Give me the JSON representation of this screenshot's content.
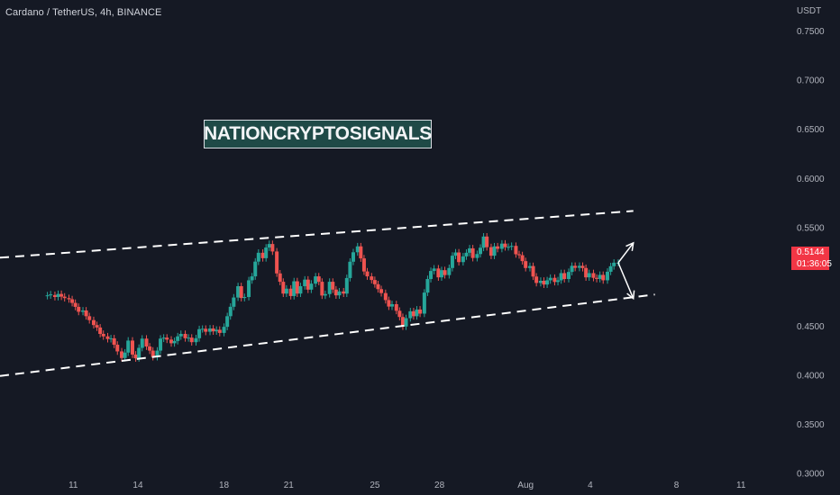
{
  "header": {
    "title": "Cardano / TetherUS, 4h, BINANCE"
  },
  "watermark": {
    "text": "NATIONCRYPTOSIGNALS"
  },
  "price_badge": {
    "price": "0.5144",
    "countdown": "01:36:05",
    "color": "#f23645"
  },
  "colors": {
    "background": "#151924",
    "up": "#26a69a",
    "down": "#ef5350",
    "grid": "#1e2230",
    "axis_text": "#b2b5be",
    "line": "#ffffff"
  },
  "chart_data": {
    "type": "candlestick",
    "symbol": "Cardano / TetherUS",
    "interval": "4h",
    "exchange": "BINANCE",
    "y_unit": "USDT",
    "ylim": [
      0.2782,
      0.7815
    ],
    "y_ticks": [
      "0.7500",
      "0.7000",
      "0.6500",
      "0.6000",
      "0.5500",
      "0.4500",
      "0.4000",
      "0.3500",
      "0.3000"
    ],
    "x_ticks": [
      "11",
      "14",
      "18",
      "21",
      "25",
      "28",
      "Aug",
      "4",
      "8",
      "11"
    ],
    "x_tick_days": [
      11,
      14,
      18,
      21,
      25,
      28,
      32,
      35,
      39,
      42
    ],
    "x_range_days": [
      7.6,
      44
    ],
    "last_price": 0.5144,
    "candles": [
      [
        9.8,
        0.4806,
        0.4812
      ],
      [
        9.95,
        0.4812,
        0.4822
      ],
      [
        10.15,
        0.4815,
        0.4795
      ],
      [
        10.3,
        0.4795,
        0.4826
      ],
      [
        10.45,
        0.4826,
        0.4799
      ],
      [
        10.6,
        0.4799,
        0.4784
      ],
      [
        10.8,
        0.4784,
        0.4772
      ],
      [
        10.95,
        0.4772,
        0.4735
      ],
      [
        11.1,
        0.4735,
        0.4695
      ],
      [
        11.25,
        0.4695,
        0.4645
      ],
      [
        11.45,
        0.4645,
        0.4658
      ],
      [
        11.6,
        0.4658,
        0.46
      ],
      [
        11.75,
        0.46,
        0.456
      ],
      [
        11.95,
        0.456,
        0.451
      ],
      [
        12.1,
        0.451,
        0.4485
      ],
      [
        12.25,
        0.4485,
        0.442
      ],
      [
        12.4,
        0.442,
        0.4395
      ],
      [
        12.6,
        0.4395,
        0.4368
      ],
      [
        12.75,
        0.4368,
        0.4375
      ],
      [
        12.9,
        0.4375,
        0.431
      ],
      [
        13.05,
        0.431,
        0.4242
      ],
      [
        13.25,
        0.4242,
        0.4175
      ],
      [
        13.4,
        0.4175,
        0.423
      ],
      [
        13.55,
        0.423,
        0.4352
      ],
      [
        13.75,
        0.4352,
        0.421
      ],
      [
        13.9,
        0.421,
        0.4172
      ],
      [
        14.05,
        0.4172,
        0.4278
      ],
      [
        14.2,
        0.4278,
        0.4372
      ],
      [
        14.4,
        0.4372,
        0.4292
      ],
      [
        14.55,
        0.4292,
        0.425
      ],
      [
        14.7,
        0.425,
        0.4185
      ],
      [
        14.9,
        0.4185,
        0.425
      ],
      [
        15.05,
        0.425,
        0.4372
      ],
      [
        15.2,
        0.4372,
        0.4382
      ],
      [
        15.35,
        0.4382,
        0.4362
      ],
      [
        15.55,
        0.4362,
        0.4325
      ],
      [
        15.7,
        0.4325,
        0.4348
      ],
      [
        15.85,
        0.4348,
        0.4395
      ],
      [
        16.0,
        0.4395,
        0.442
      ],
      [
        16.2,
        0.442,
        0.4376
      ],
      [
        16.35,
        0.4376,
        0.4382
      ],
      [
        16.5,
        0.4382,
        0.4336
      ],
      [
        16.7,
        0.4336,
        0.4376
      ],
      [
        16.85,
        0.4376,
        0.4468
      ],
      [
        17.0,
        0.4468,
        0.4472
      ],
      [
        17.15,
        0.4472,
        0.4442
      ],
      [
        17.35,
        0.4442,
        0.4475
      ],
      [
        17.5,
        0.4475,
        0.4446
      ],
      [
        17.65,
        0.4446,
        0.4462
      ],
      [
        17.8,
        0.4462,
        0.443
      ],
      [
        18.0,
        0.443,
        0.4492
      ],
      [
        18.15,
        0.4492,
        0.46
      ],
      [
        18.3,
        0.46,
        0.4696
      ],
      [
        18.45,
        0.4696,
        0.479
      ],
      [
        18.65,
        0.479,
        0.4905
      ],
      [
        18.8,
        0.4905,
        0.4785
      ],
      [
        18.95,
        0.4785,
        0.4795
      ],
      [
        19.15,
        0.4795,
        0.4965
      ],
      [
        19.3,
        0.4965,
        0.5005
      ],
      [
        19.45,
        0.5005,
        0.5155
      ],
      [
        19.6,
        0.5155,
        0.5245
      ],
      [
        19.8,
        0.5245,
        0.519
      ],
      [
        19.95,
        0.519,
        0.5298
      ],
      [
        20.1,
        0.5298,
        0.5334
      ],
      [
        20.25,
        0.5334,
        0.5258
      ],
      [
        20.45,
        0.5258,
        0.5035
      ],
      [
        20.6,
        0.5035,
        0.495
      ],
      [
        20.75,
        0.495,
        0.483
      ],
      [
        20.9,
        0.483,
        0.488
      ],
      [
        21.1,
        0.488,
        0.4805
      ],
      [
        21.25,
        0.4805,
        0.4955
      ],
      [
        21.4,
        0.4955,
        0.483
      ],
      [
        21.55,
        0.483,
        0.4905
      ],
      [
        21.75,
        0.4905,
        0.4972
      ],
      [
        21.9,
        0.4972,
        0.487
      ],
      [
        22.05,
        0.487,
        0.4931
      ],
      [
        22.25,
        0.4931,
        0.5005
      ],
      [
        22.4,
        0.5005,
        0.495
      ],
      [
        22.55,
        0.495,
        0.481
      ],
      [
        22.7,
        0.481,
        0.4825
      ],
      [
        22.9,
        0.4825,
        0.495
      ],
      [
        23.05,
        0.495,
        0.4871
      ],
      [
        23.2,
        0.4871,
        0.4812
      ],
      [
        23.35,
        0.4812,
        0.4852
      ],
      [
        23.55,
        0.4852,
        0.483
      ],
      [
        23.7,
        0.483,
        0.4988
      ],
      [
        23.85,
        0.4988,
        0.5154
      ],
      [
        24.0,
        0.5154,
        0.525
      ],
      [
        24.2,
        0.525,
        0.531
      ],
      [
        24.35,
        0.531,
        0.5188
      ],
      [
        24.5,
        0.5188,
        0.5055
      ],
      [
        24.65,
        0.5055,
        0.5005
      ],
      [
        24.85,
        0.5005,
        0.4968
      ],
      [
        25.0,
        0.4968,
        0.4925
      ],
      [
        25.15,
        0.4925,
        0.4875
      ],
      [
        25.3,
        0.4875,
        0.4835
      ],
      [
        25.5,
        0.4835,
        0.4764
      ],
      [
        25.65,
        0.4764,
        0.4698
      ],
      [
        25.8,
        0.4698,
        0.4722
      ],
      [
        26.0,
        0.4722,
        0.4655
      ],
      [
        26.15,
        0.4655,
        0.4592
      ],
      [
        26.3,
        0.4592,
        0.4495
      ],
      [
        26.45,
        0.4495,
        0.458
      ],
      [
        26.65,
        0.458,
        0.465
      ],
      [
        26.8,
        0.465,
        0.46
      ],
      [
        26.95,
        0.46,
        0.4668
      ],
      [
        27.1,
        0.4668,
        0.4626
      ],
      [
        27.3,
        0.4626,
        0.484
      ],
      [
        27.45,
        0.484,
        0.4978
      ],
      [
        27.6,
        0.4978,
        0.506
      ],
      [
        27.75,
        0.506,
        0.5085
      ],
      [
        27.95,
        0.5085,
        0.4995
      ],
      [
        28.1,
        0.4995,
        0.5068
      ],
      [
        28.25,
        0.5068,
        0.5018
      ],
      [
        28.45,
        0.5018,
        0.509
      ],
      [
        28.6,
        0.509,
        0.5215
      ],
      [
        28.75,
        0.5215,
        0.5248
      ],
      [
        28.9,
        0.5248,
        0.515
      ],
      [
        29.1,
        0.515,
        0.5208
      ],
      [
        29.25,
        0.5208,
        0.5245
      ],
      [
        29.4,
        0.5245,
        0.529
      ],
      [
        29.55,
        0.529,
        0.5192
      ],
      [
        29.75,
        0.5192,
        0.5232
      ],
      [
        29.9,
        0.5232,
        0.5296
      ],
      [
        30.05,
        0.5296,
        0.541
      ],
      [
        30.2,
        0.541,
        0.5302
      ],
      [
        30.4,
        0.5302,
        0.5215
      ],
      [
        30.55,
        0.5215,
        0.531
      ],
      [
        30.7,
        0.531,
        0.5285
      ],
      [
        30.9,
        0.5285,
        0.5338
      ],
      [
        31.05,
        0.5338,
        0.5302
      ],
      [
        31.2,
        0.5302,
        0.5305
      ],
      [
        31.35,
        0.5305,
        0.5315
      ],
      [
        31.55,
        0.5315,
        0.523
      ],
      [
        31.7,
        0.523,
        0.522
      ],
      [
        31.85,
        0.522,
        0.516
      ],
      [
        32.0,
        0.516,
        0.509
      ],
      [
        32.2,
        0.509,
        0.511
      ],
      [
        32.35,
        0.511,
        0.5003
      ],
      [
        32.5,
        0.5003,
        0.4938
      ],
      [
        32.7,
        0.4938,
        0.496
      ],
      [
        32.85,
        0.496,
        0.4922
      ],
      [
        33.0,
        0.4922,
        0.4965
      ],
      [
        33.15,
        0.4965,
        0.499
      ],
      [
        33.35,
        0.499,
        0.4948
      ],
      [
        33.5,
        0.4948,
        0.4965
      ],
      [
        33.65,
        0.4965,
        0.5038
      ],
      [
        33.8,
        0.5038,
        0.4978
      ],
      [
        34.0,
        0.4978,
        0.505
      ],
      [
        34.15,
        0.505,
        0.5112
      ],
      [
        34.3,
        0.5112,
        0.5092
      ],
      [
        34.5,
        0.5092,
        0.5112
      ],
      [
        34.65,
        0.5112,
        0.509
      ],
      [
        34.8,
        0.509,
        0.4995
      ],
      [
        34.95,
        0.4995,
        0.5038
      ],
      [
        35.15,
        0.5038,
        0.499
      ],
      [
        35.3,
        0.499,
        0.4979
      ],
      [
        35.45,
        0.4979,
        0.502
      ],
      [
        35.6,
        0.502,
        0.4965
      ],
      [
        35.8,
        0.4965,
        0.5052
      ],
      [
        35.95,
        0.5052,
        0.5108
      ],
      [
        36.1,
        0.5108,
        0.5144
      ],
      [
        36.3,
        0.5144,
        0.5144
      ]
    ],
    "annotations": [
      {
        "kind": "dashed-line",
        "name": "channel-upper",
        "p1": [
          7.6,
          0.5195
        ],
        "p2": [
          37.0,
          0.567
        ]
      },
      {
        "kind": "dashed-line",
        "name": "channel-lower",
        "p1": [
          7.6,
          0.3992
        ],
        "p2": [
          38.0,
          0.482
        ]
      },
      {
        "kind": "arrow",
        "name": "arrow-up",
        "from": [
          36.3,
          0.5144
        ],
        "to": [
          37.0,
          0.5345
        ]
      },
      {
        "kind": "arrow",
        "name": "arrow-down",
        "from": [
          36.3,
          0.5144
        ],
        "to": [
          37.0,
          0.478
        ]
      }
    ]
  }
}
